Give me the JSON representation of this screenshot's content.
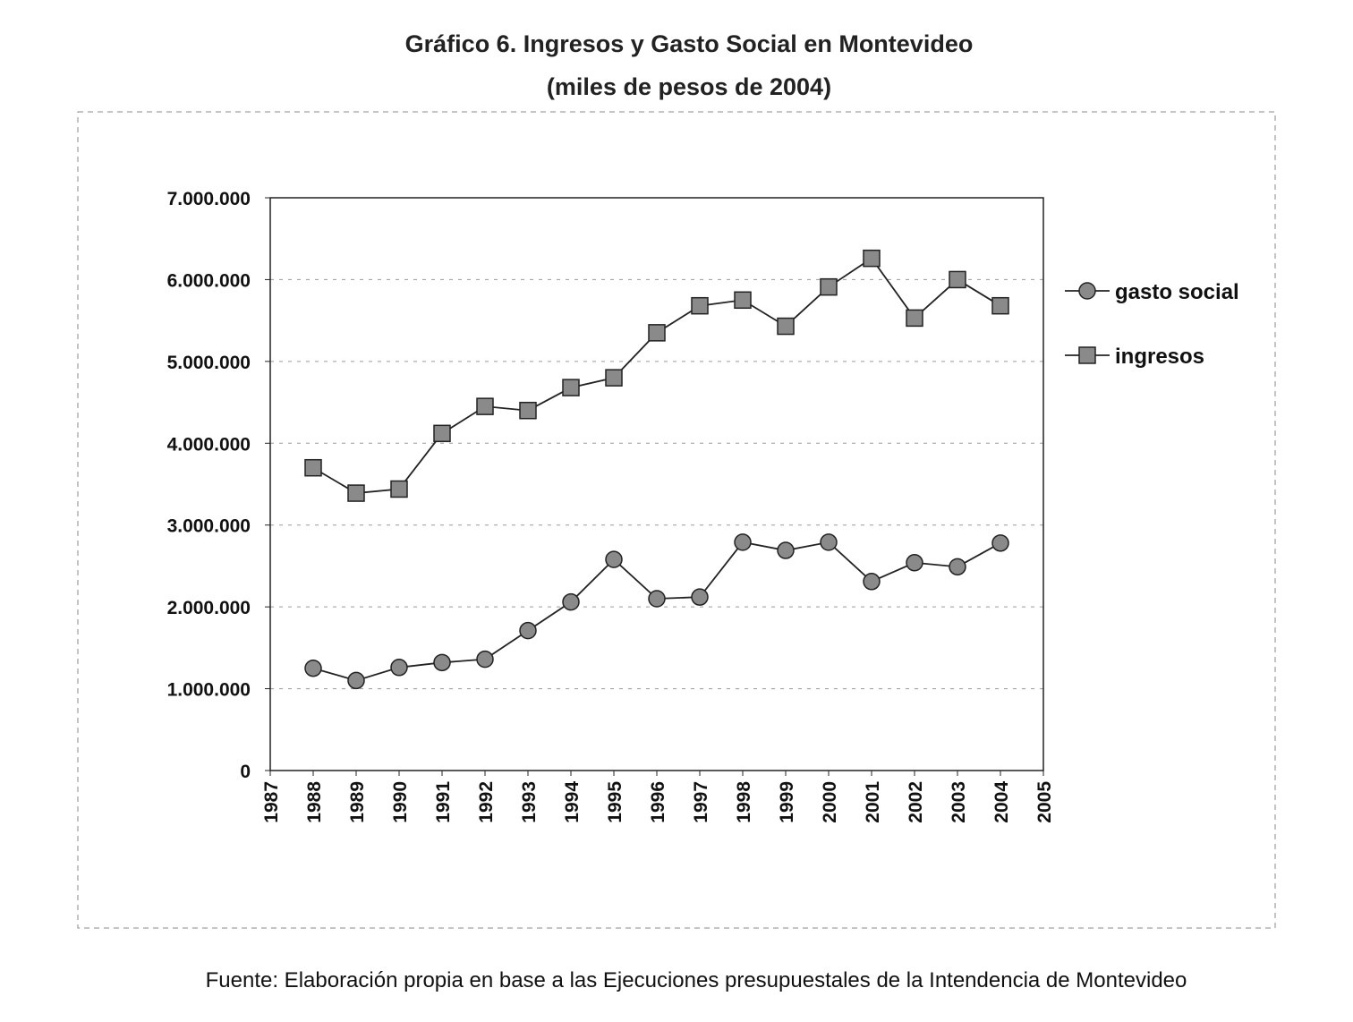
{
  "chart_data": {
    "type": "line",
    "title": "Gráfico 6. Ingresos y Gasto Social en Montevideo",
    "subtitle": "(miles de pesos de 2004)",
    "xlabel": "",
    "ylabel": "",
    "xlim": [
      1987,
      2005
    ],
    "ylim": [
      0,
      7000000
    ],
    "x_ticks": [
      "1987",
      "1988",
      "1989",
      "1990",
      "1991",
      "1992",
      "1993",
      "1994",
      "1995",
      "1996",
      "1997",
      "1998",
      "1999",
      "2000",
      "2001",
      "2002",
      "2003",
      "2004",
      "2005"
    ],
    "y_ticks": [
      {
        "value": 0,
        "label": "0"
      },
      {
        "value": 1000000,
        "label": "1.000.000"
      },
      {
        "value": 2000000,
        "label": "2.000.000"
      },
      {
        "value": 3000000,
        "label": "3.000.000"
      },
      {
        "value": 4000000,
        "label": "4.000.000"
      },
      {
        "value": 5000000,
        "label": "5.000.000"
      },
      {
        "value": 6000000,
        "label": "6.000.000"
      },
      {
        "value": 7000000,
        "label": "7.000.000"
      }
    ],
    "grid": true,
    "legend_position": "right",
    "x": [
      1988,
      1989,
      1990,
      1991,
      1992,
      1993,
      1994,
      1995,
      1996,
      1997,
      1998,
      1999,
      2000,
      2001,
      2002,
      2003,
      2004
    ],
    "series": [
      {
        "name": "gasto social",
        "marker": "circle",
        "values": [
          1250000,
          1100000,
          1260000,
          1320000,
          1360000,
          1710000,
          2060000,
          2580000,
          2100000,
          2120000,
          2790000,
          2690000,
          2790000,
          2310000,
          2540000,
          2490000,
          2780000
        ]
      },
      {
        "name": "ingresos",
        "marker": "square",
        "values": [
          3700000,
          3390000,
          3440000,
          4120000,
          4450000,
          4400000,
          4680000,
          4800000,
          5350000,
          5680000,
          5750000,
          5430000,
          5910000,
          6260000,
          5530000,
          6000000,
          5680000
        ]
      }
    ],
    "source": "Fuente: Elaboración propia en base a las Ejecuciones presupuestales de la Intendencia de Montevideo"
  },
  "colors": {
    "line": "#222222",
    "marker_fill": "#8a8a8a",
    "grid": "#9a9a9a"
  }
}
